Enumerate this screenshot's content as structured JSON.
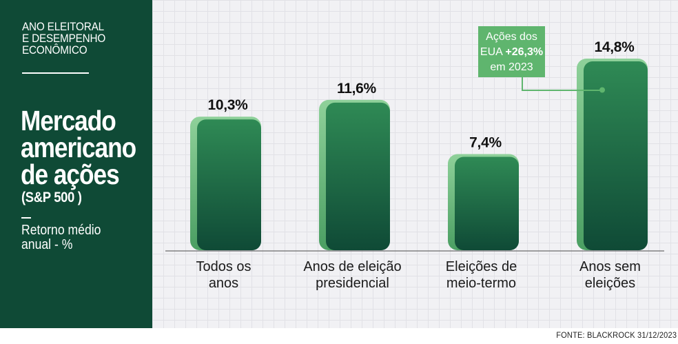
{
  "sidebar": {
    "kicker_lines": [
      "ANO ELEITORAL",
      "E DESEMPENHO",
      "ECONÔMICO"
    ],
    "title_lines": [
      "Mercado",
      "americano",
      "de ações"
    ],
    "title_note": "(S&P 500 )",
    "subtitle_lines": [
      "Retorno médio",
      "anual - %"
    ]
  },
  "source": "FONTE: BLACKROCK 31/12/2023",
  "colors": {
    "sidebar": "#0f4a36",
    "bar_top": "#2f8a55",
    "bar_bottom": "#0f4a36",
    "bar_shadow": "#7fc98a",
    "callout": "#5fb56e",
    "grid_background": "#f1f1f4"
  },
  "chart_data": {
    "type": "bar",
    "title": "Mercado americano de ações (S&P 500 )",
    "ylabel": "Retorno médio anual - %",
    "grid": true,
    "categories": [
      [
        "Todos os",
        "anos"
      ],
      [
        "Anos de eleição",
        "presidencial"
      ],
      [
        "Eleições de",
        "meio-termo"
      ],
      [
        "Anos sem",
        "eleições"
      ]
    ],
    "values": [
      10.3,
      11.6,
      7.4,
      14.8
    ],
    "value_labels": [
      "10,3%",
      "11,6%",
      "7,4%",
      "14,8%"
    ],
    "ylim": [
      0,
      14.8
    ],
    "annotation": {
      "category_index": 3,
      "lines": [
        [
          "Ações dos"
        ],
        [
          "EUA ",
          "+26,3%"
        ],
        [
          "em 2023"
        ]
      ]
    }
  }
}
